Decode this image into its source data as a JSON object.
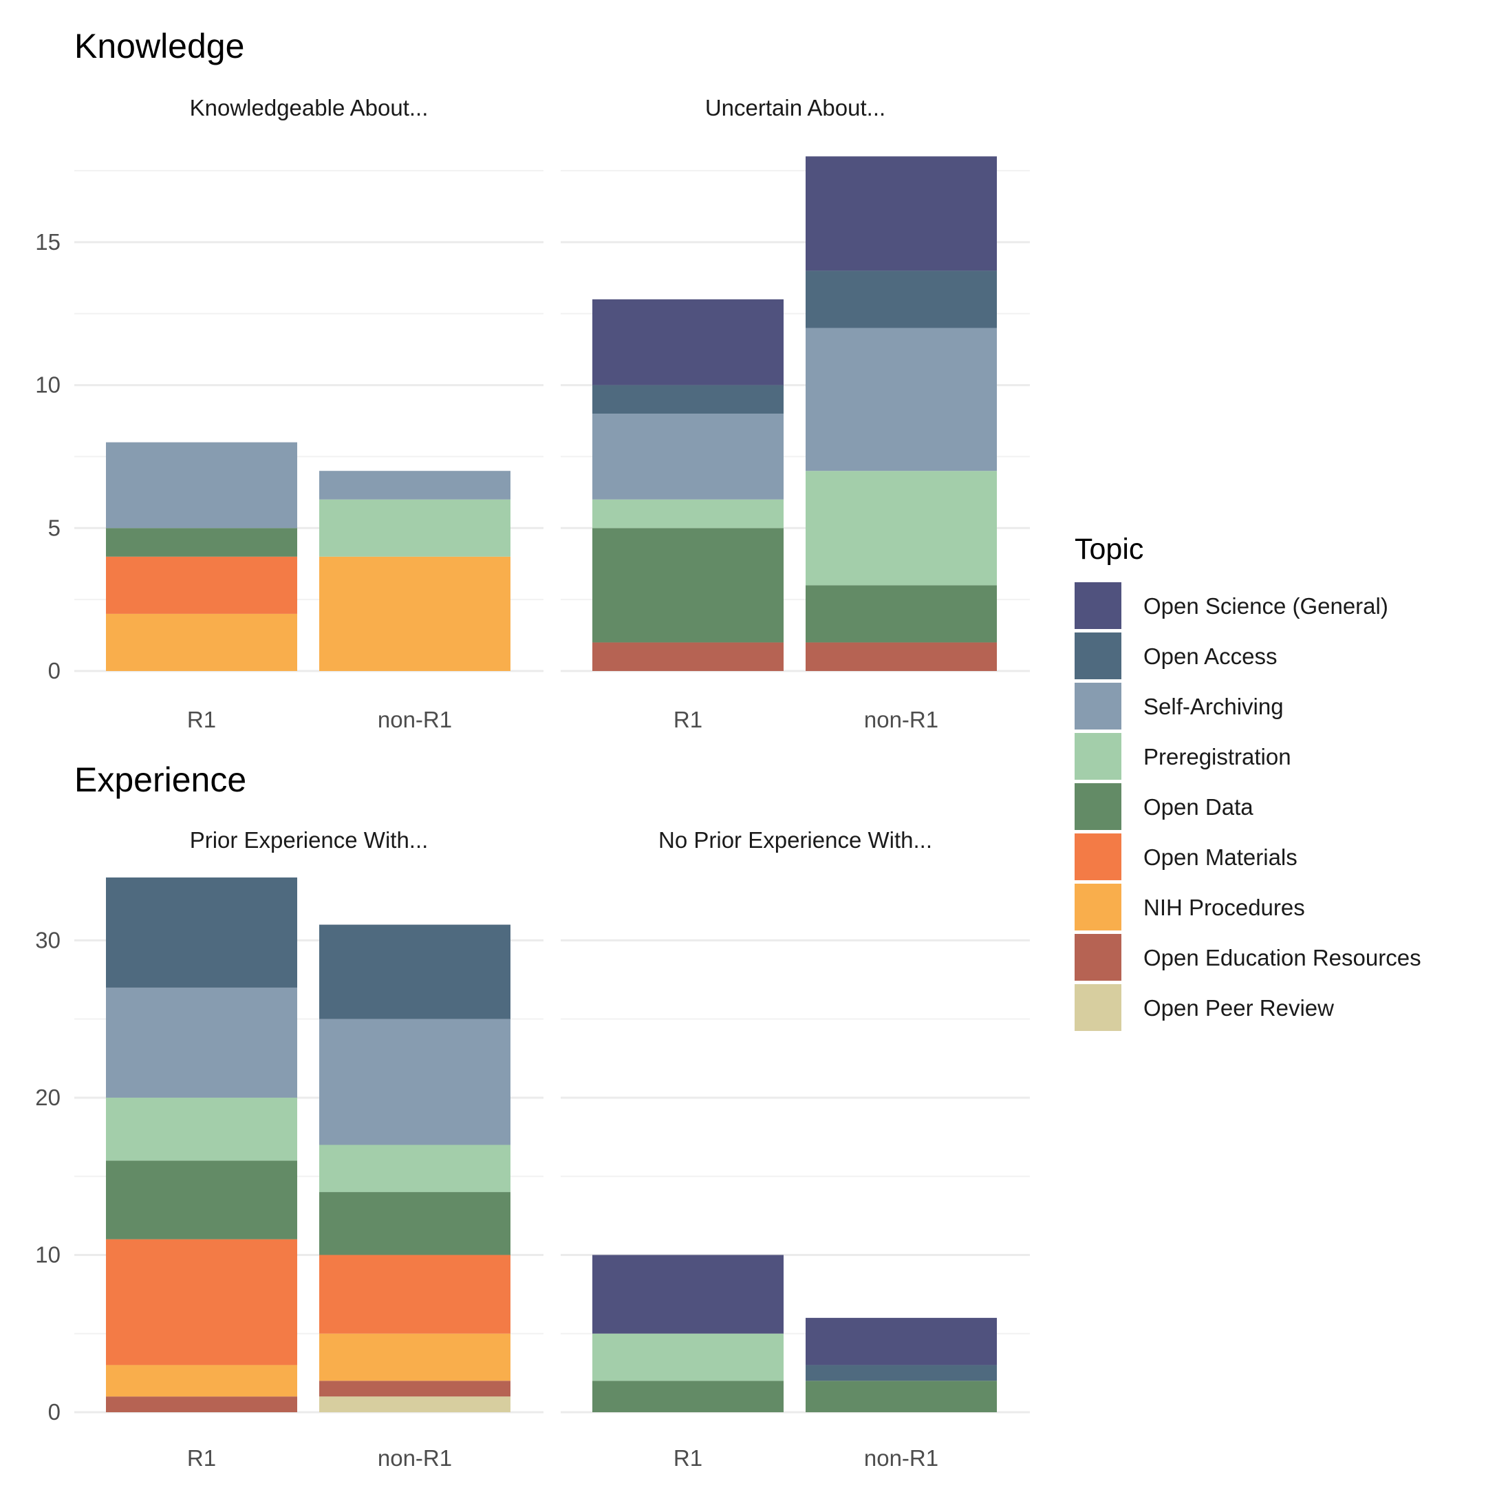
{
  "colors": {
    "Open Science (General)": "#50527e",
    "Open Access": "#4f6a7f",
    "Self-Archiving": "#879cb0",
    "Preregistration": "#a3ceaa",
    "Open Data": "#638b66",
    "Open Materials": "#f37b46",
    "NIH Procedures": "#f9ae4c",
    "Open Education Resources": "#b66353",
    "Open Peer Review": "#d7ce9f"
  },
  "legend": {
    "title": "Topic",
    "items": [
      "Open Science (General)",
      "Open Access",
      "Self-Archiving",
      "Preregistration",
      "Open Data",
      "Open Materials",
      "NIH Procedures",
      "Open Education Resources",
      "Open Peer Review"
    ]
  },
  "chart_data": [
    {
      "section": "Knowledge",
      "type": "bar",
      "stacked": true,
      "ylim": [
        0,
        18
      ],
      "yticks": [
        0,
        5,
        10,
        15
      ],
      "panels": [
        {
          "title": "Knowledgeable About...",
          "categories": [
            "R1",
            "non-R1"
          ],
          "series": [
            {
              "name": "Open Education Resources",
              "values": [
                0,
                0
              ]
            },
            {
              "name": "NIH Procedures",
              "values": [
                2,
                4
              ]
            },
            {
              "name": "Open Materials",
              "values": [
                2,
                0
              ]
            },
            {
              "name": "Open Data",
              "values": [
                1,
                0
              ]
            },
            {
              "name": "Preregistration",
              "values": [
                0,
                2
              ]
            },
            {
              "name": "Self-Archiving",
              "values": [
                3,
                1
              ]
            },
            {
              "name": "Open Access",
              "values": [
                0,
                0
              ]
            },
            {
              "name": "Open Science (General)",
              "values": [
                0,
                0
              ]
            }
          ]
        },
        {
          "title": "Uncertain About...",
          "categories": [
            "R1",
            "non-R1"
          ],
          "series": [
            {
              "name": "Open Education Resources",
              "values": [
                1,
                1
              ]
            },
            {
              "name": "Open Data",
              "values": [
                4,
                2
              ]
            },
            {
              "name": "Preregistration",
              "values": [
                1,
                4
              ]
            },
            {
              "name": "Self-Archiving",
              "values": [
                3,
                5
              ]
            },
            {
              "name": "Open Access",
              "values": [
                1,
                2
              ]
            },
            {
              "name": "Open Science (General)",
              "values": [
                3,
                4
              ]
            }
          ]
        }
      ]
    },
    {
      "section": "Experience",
      "type": "bar",
      "stacked": true,
      "ylim": [
        0,
        34
      ],
      "yticks": [
        0,
        10,
        20,
        30
      ],
      "panels": [
        {
          "title": "Prior Experience With...",
          "categories": [
            "R1",
            "non-R1"
          ],
          "series": [
            {
              "name": "Open Peer Review",
              "values": [
                0,
                1
              ]
            },
            {
              "name": "Open Education Resources",
              "values": [
                1,
                1
              ]
            },
            {
              "name": "NIH Procedures",
              "values": [
                2,
                3
              ]
            },
            {
              "name": "Open Materials",
              "values": [
                8,
                5
              ]
            },
            {
              "name": "Open Data",
              "values": [
                5,
                4
              ]
            },
            {
              "name": "Preregistration",
              "values": [
                4,
                3
              ]
            },
            {
              "name": "Self-Archiving",
              "values": [
                7,
                8
              ]
            },
            {
              "name": "Open Access",
              "values": [
                7,
                6
              ]
            }
          ]
        },
        {
          "title": "No Prior Experience With...",
          "categories": [
            "R1",
            "non-R1"
          ],
          "series": [
            {
              "name": "Open Data",
              "values": [
                2,
                2
              ]
            },
            {
              "name": "Preregistration",
              "values": [
                3,
                0
              ]
            },
            {
              "name": "Open Access",
              "values": [
                0,
                1
              ]
            },
            {
              "name": "Open Science (General)",
              "values": [
                5,
                3
              ]
            }
          ]
        }
      ]
    }
  ]
}
